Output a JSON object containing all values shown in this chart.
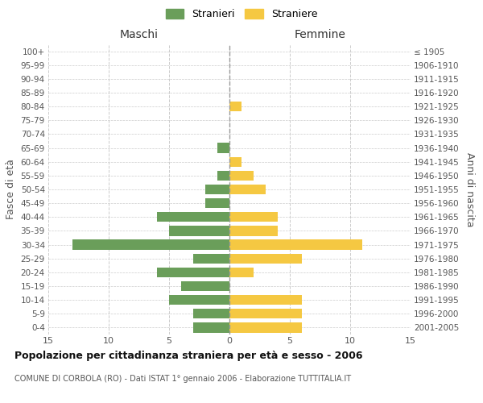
{
  "age_groups": [
    "100+",
    "95-99",
    "90-94",
    "85-89",
    "80-84",
    "75-79",
    "70-74",
    "65-69",
    "60-64",
    "55-59",
    "50-54",
    "45-49",
    "40-44",
    "35-39",
    "30-34",
    "25-29",
    "20-24",
    "15-19",
    "10-14",
    "5-9",
    "0-4"
  ],
  "birth_years": [
    "≤ 1905",
    "1906-1910",
    "1911-1915",
    "1916-1920",
    "1921-1925",
    "1926-1930",
    "1931-1935",
    "1936-1940",
    "1941-1945",
    "1946-1950",
    "1951-1955",
    "1956-1960",
    "1961-1965",
    "1966-1970",
    "1971-1975",
    "1976-1980",
    "1981-1985",
    "1986-1990",
    "1991-1995",
    "1996-2000",
    "2001-2005"
  ],
  "males": [
    0,
    0,
    0,
    0,
    0,
    0,
    0,
    1,
    0,
    1,
    2,
    2,
    6,
    5,
    13,
    3,
    6,
    4,
    5,
    3,
    3
  ],
  "females": [
    0,
    0,
    0,
    0,
    1,
    0,
    0,
    0,
    1,
    2,
    3,
    0,
    4,
    4,
    11,
    6,
    2,
    0,
    6,
    6,
    6
  ],
  "male_color": "#6a9e5a",
  "female_color": "#f5c842",
  "title": "Popolazione per cittadinanza straniera per età e sesso - 2006",
  "subtitle": "COMUNE DI CORBOLA (RO) - Dati ISTAT 1° gennaio 2006 - Elaborazione TUTTITALIA.IT",
  "legend_male": "Stranieri",
  "legend_female": "Straniere",
  "xlabel_left": "Maschi",
  "xlabel_right": "Femmine",
  "ylabel_left": "Fasce di età",
  "ylabel_right": "Anni di nascita",
  "xlim": 15,
  "background_color": "#ffffff",
  "grid_color": "#cccccc"
}
